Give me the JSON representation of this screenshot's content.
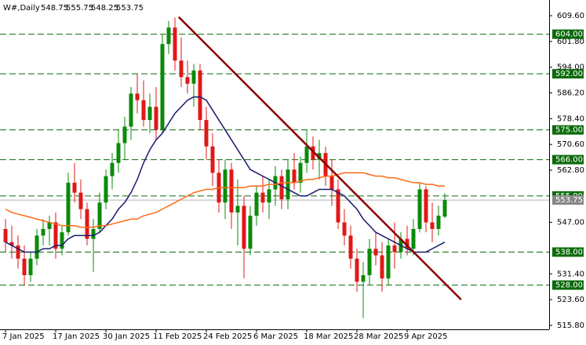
{
  "chart_data": {
    "type": "candlestick",
    "symbol": "W#,Daily",
    "categories": [
      "7 Jan 2025",
      null,
      null,
      null,
      null,
      null,
      null,
      null,
      "17 Jan 2025",
      null,
      null,
      null,
      null,
      null,
      null,
      null,
      "30 Jan 2025",
      null,
      null,
      null,
      null,
      null,
      null,
      null,
      "11 Feb 2025",
      null,
      null,
      null,
      null,
      null,
      null,
      null,
      "24 Feb 2025",
      null,
      null,
      null,
      null,
      null,
      null,
      null,
      "6 Mar 2025",
      null,
      null,
      null,
      null,
      null,
      null,
      null,
      "18 Mar 2025",
      null,
      null,
      null,
      null,
      null,
      null,
      null,
      "28 Mar 2025",
      null,
      null,
      null,
      null,
      null,
      null,
      null,
      "9 Apr 2025",
      null,
      null,
      null,
      null,
      null,
      null
    ],
    "open": [
      545,
      541,
      540,
      536,
      531,
      536,
      543,
      545,
      547,
      539,
      544,
      559,
      556,
      551,
      542,
      545,
      553,
      561,
      565,
      571,
      576,
      586,
      584,
      578,
      582,
      575,
      601,
      606,
      596,
      591,
      589,
      593,
      578,
      570,
      562,
      553,
      563,
      550,
      552,
      539,
      549,
      556,
      553,
      557,
      561,
      554,
      563,
      559,
      565,
      570,
      566,
      568,
      561,
      557,
      547,
      543,
      536,
      529,
      531,
      539,
      537,
      530,
      540,
      538,
      542,
      539,
      545,
      557,
      547,
      545,
      548.75
    ],
    "high": [
      548,
      546,
      543,
      540,
      538,
      545,
      548,
      549,
      550,
      546,
      562,
      565,
      560,
      553,
      548,
      556,
      563,
      568,
      575,
      579,
      588,
      592,
      590,
      586,
      588,
      604,
      608,
      609,
      603,
      596,
      595,
      595,
      582,
      574,
      566,
      566,
      565,
      560,
      555,
      552,
      558,
      561,
      560,
      564,
      563,
      566,
      568,
      567,
      575,
      573,
      572,
      570,
      566,
      560,
      551,
      546,
      539,
      535,
      542,
      544,
      541,
      542,
      547,
      544,
      546,
      548,
      559,
      558,
      553,
      552,
      555.75
    ],
    "low": [
      538,
      536,
      533,
      528,
      529,
      534,
      540,
      540,
      536,
      537,
      543,
      553,
      548,
      540,
      532,
      544,
      551,
      557,
      562,
      566,
      572,
      580,
      576,
      574,
      572,
      574,
      598,
      593,
      588,
      586,
      582,
      575,
      566,
      558,
      550,
      548,
      545,
      540,
      530,
      537,
      546,
      550,
      548,
      552,
      551,
      551,
      557,
      556,
      562,
      563,
      560,
      558,
      552,
      545,
      540,
      533,
      526,
      518,
      528,
      534,
      526,
      528,
      533,
      536,
      537,
      537,
      544,
      544,
      541,
      543,
      548.25
    ],
    "close": [
      541,
      540,
      536,
      531,
      536,
      543,
      545,
      547,
      539,
      544,
      559,
      556,
      551,
      542,
      545,
      553,
      561,
      565,
      571,
      576,
      586,
      584,
      578,
      582,
      575,
      601,
      606,
      596,
      591,
      589,
      593,
      578,
      570,
      562,
      553,
      563,
      550,
      552,
      539,
      549,
      556,
      553,
      557,
      561,
      554,
      563,
      559,
      565,
      570,
      566,
      568,
      561,
      557,
      547,
      543,
      536,
      529,
      531,
      539,
      537,
      530,
      540,
      538,
      542,
      539,
      545,
      557,
      547,
      545,
      549,
      553.75
    ],
    "up_color": "#0b8a0b",
    "down_color": "#e01818",
    "overlays": [
      {
        "color": "#1a1a6e",
        "values": [
          541,
          540,
          539,
          538,
          538,
          538,
          539,
          539,
          540,
          540,
          542,
          543,
          543,
          543,
          543,
          544,
          546,
          548,
          551,
          553,
          556,
          560,
          565,
          569,
          572,
          574,
          577,
          580,
          582,
          584,
          585,
          585,
          584,
          581,
          578,
          575,
          572,
          569,
          566,
          563,
          562,
          561,
          560,
          559,
          558,
          557,
          556,
          555,
          555,
          556,
          557,
          557,
          557,
          556,
          555,
          553,
          551,
          548,
          546,
          544,
          543,
          542,
          541,
          540,
          539,
          538,
          538,
          538,
          539,
          540,
          541
        ]
      },
      {
        "color": "#ff6a13",
        "values": [
          551,
          550,
          549.5,
          549,
          548.5,
          548,
          547.5,
          547,
          546.5,
          546,
          546,
          546,
          545.5,
          545.5,
          545.5,
          546,
          546,
          546.5,
          547,
          547.5,
          548,
          548,
          549,
          549.5,
          550,
          551,
          552,
          553,
          554,
          555,
          556,
          556.5,
          557,
          557,
          557.5,
          557.5,
          557.5,
          557.5,
          557.5,
          558,
          558,
          558,
          558.5,
          558.5,
          559,
          559,
          559,
          559.5,
          560,
          560,
          560.5,
          561,
          561,
          561.5,
          562,
          562,
          562,
          562,
          561.5,
          561,
          561,
          560.5,
          560.5,
          560,
          559.5,
          559,
          559,
          558.5,
          558.5,
          558,
          558
        ]
      }
    ],
    "levels": [
      {
        "value": 604,
        "label": "604.00"
      },
      {
        "value": 592,
        "label": "592.00"
      },
      {
        "value": 575,
        "label": "575.00"
      },
      {
        "value": 566,
        "label": "566.00"
      },
      {
        "value": 555,
        "label": "555.00"
      },
      {
        "value": 538,
        "label": "538.00"
      },
      {
        "value": 528,
        "label": "528.00"
      }
    ],
    "level_color": "#0b6b0b",
    "trendline": {
      "color": "#8b0000",
      "x": [
        27.6,
        72.6
      ],
      "y": [
        609.2,
        523.6
      ]
    },
    "ylim": [
      514.6,
      614.35
    ],
    "yticks": [
      {
        "value": 609.6,
        "label": "609.60"
      },
      {
        "value": 601.8,
        "label": "601.80"
      },
      {
        "value": 594,
        "label": "594.00"
      },
      {
        "value": 586.2,
        "label": "586.20"
      },
      {
        "value": 578.4,
        "label": "578.40"
      },
      {
        "value": 570.6,
        "label": "570.60"
      },
      {
        "value": 562.8,
        "label": "562.80"
      },
      {
        "value": 547,
        "label": "547.00"
      },
      {
        "value": 531.4,
        "label": "531.40"
      },
      {
        "value": 523.6,
        "label": "523.60"
      },
      {
        "value": 515.8,
        "label": "515.80"
      }
    ]
  }
}
